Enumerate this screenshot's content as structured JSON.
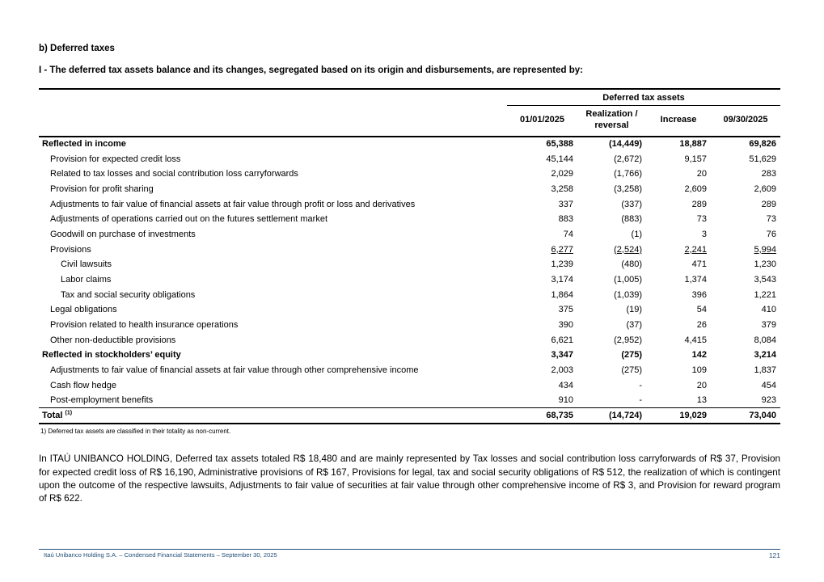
{
  "page": {
    "title": "b) Deferred taxes",
    "subtitle": "I - The deferred tax assets balance and its changes, segregated based on its origin and disbursements, are represented by:",
    "footnote": "1) Deferred tax assets are classified in their totality as non-current.",
    "paragraph": "In ITAÚ UNIBANCO HOLDING, Deferred tax assets totaled R$ 18,480 and are mainly represented by Tax losses and social contribution loss carryforwards of R$ 37, Provision for expected credit loss of R$ 16,190, Administrative provisions of R$ 167, Provisions for legal, tax and social security obligations of R$ 512, the realization of which is contingent upon the outcome of the respective lawsuits, Adjustments to fair value of securities at fair value through other comprehensive income of R$ 3, and Provision for reward program of R$ 622.",
    "footer_text": "Itaú Unibanco Holding S.A. – Condensed Financial Statements – September 30, 2025",
    "page_number": "121"
  },
  "colors": {
    "footer_blue": "#1f4e79",
    "rule_black": "#000000"
  },
  "table": {
    "group_header": "Deferred tax assets",
    "columns": [
      "01/01/2025",
      "Realization / reversal",
      "Increase",
      "09/30/2025"
    ],
    "rows": [
      {
        "label": "Reflected in income",
        "indent": 0,
        "bold": true,
        "underline": false,
        "total": false,
        "values": [
          "65,388",
          "(14,449)",
          "18,887",
          "69,826"
        ]
      },
      {
        "label": "Provision for expected credit loss",
        "indent": 1,
        "bold": false,
        "underline": false,
        "total": false,
        "values": [
          "45,144",
          "(2,672)",
          "9,157",
          "51,629"
        ]
      },
      {
        "label": "Related to tax losses and social contribution loss carryforwards",
        "indent": 1,
        "bold": false,
        "underline": false,
        "total": false,
        "values": [
          "2,029",
          "(1,766)",
          "20",
          "283"
        ]
      },
      {
        "label": "Provision for profit sharing",
        "indent": 1,
        "bold": false,
        "underline": false,
        "total": false,
        "values": [
          "3,258",
          "(3,258)",
          "2,609",
          "2,609"
        ]
      },
      {
        "label": "Adjustments to fair value of financial assets at fair value through profit or loss and derivatives",
        "indent": 1,
        "bold": false,
        "underline": false,
        "total": false,
        "values": [
          "337",
          "(337)",
          "289",
          "289"
        ]
      },
      {
        "label": "Adjustments of operations carried out on the futures settlement market",
        "indent": 1,
        "bold": false,
        "underline": false,
        "total": false,
        "values": [
          "883",
          "(883)",
          "73",
          "73"
        ]
      },
      {
        "label": "Goodwill on purchase of investments",
        "indent": 1,
        "bold": false,
        "underline": false,
        "total": false,
        "values": [
          "74",
          "(1)",
          "3",
          "76"
        ]
      },
      {
        "label": "Provisions",
        "indent": 1,
        "bold": false,
        "underline": true,
        "total": false,
        "values": [
          "6,277",
          "(2,524)",
          "2,241",
          "5,994"
        ]
      },
      {
        "label": "Civil lawsuits",
        "indent": 2,
        "bold": false,
        "underline": false,
        "total": false,
        "values": [
          "1,239",
          "(480)",
          "471",
          "1,230"
        ]
      },
      {
        "label": "Labor claims",
        "indent": 2,
        "bold": false,
        "underline": false,
        "total": false,
        "values": [
          "3,174",
          "(1,005)",
          "1,374",
          "3,543"
        ]
      },
      {
        "label": "Tax and social security obligations",
        "indent": 2,
        "bold": false,
        "underline": false,
        "total": false,
        "values": [
          "1,864",
          "(1,039)",
          "396",
          "1,221"
        ]
      },
      {
        "label": "Legal obligations",
        "indent": 1,
        "bold": false,
        "underline": false,
        "total": false,
        "values": [
          "375",
          "(19)",
          "54",
          "410"
        ]
      },
      {
        "label": "Provision related to health insurance operations",
        "indent": 1,
        "bold": false,
        "underline": false,
        "total": false,
        "values": [
          "390",
          "(37)",
          "26",
          "379"
        ]
      },
      {
        "label": "Other non-deductible provisions",
        "indent": 1,
        "bold": false,
        "underline": false,
        "total": false,
        "values": [
          "6,621",
          "(2,952)",
          "4,415",
          "8,084"
        ]
      },
      {
        "label": "Reflected in stockholders’ equity",
        "indent": 0,
        "bold": true,
        "underline": false,
        "total": false,
        "values": [
          "3,347",
          "(275)",
          "142",
          "3,214"
        ]
      },
      {
        "label": "Adjustments to fair value of financial assets at fair value through other comprehensive income",
        "indent": 1,
        "bold": false,
        "underline": false,
        "total": false,
        "values": [
          "2,003",
          "(275)",
          "109",
          "1,837"
        ]
      },
      {
        "label": "Cash flow hedge",
        "indent": 1,
        "bold": false,
        "underline": false,
        "total": false,
        "values": [
          "434",
          "-",
          "20",
          "454"
        ]
      },
      {
        "label": "Post-employment benefits",
        "indent": 1,
        "bold": false,
        "underline": false,
        "total": false,
        "values": [
          "910",
          "-",
          "13",
          "923"
        ]
      },
      {
        "label": "Total",
        "sup": "(1)",
        "indent": 0,
        "bold": true,
        "underline": false,
        "total": true,
        "values": [
          "68,735",
          "(14,724)",
          "19,029",
          "73,040"
        ]
      }
    ]
  }
}
